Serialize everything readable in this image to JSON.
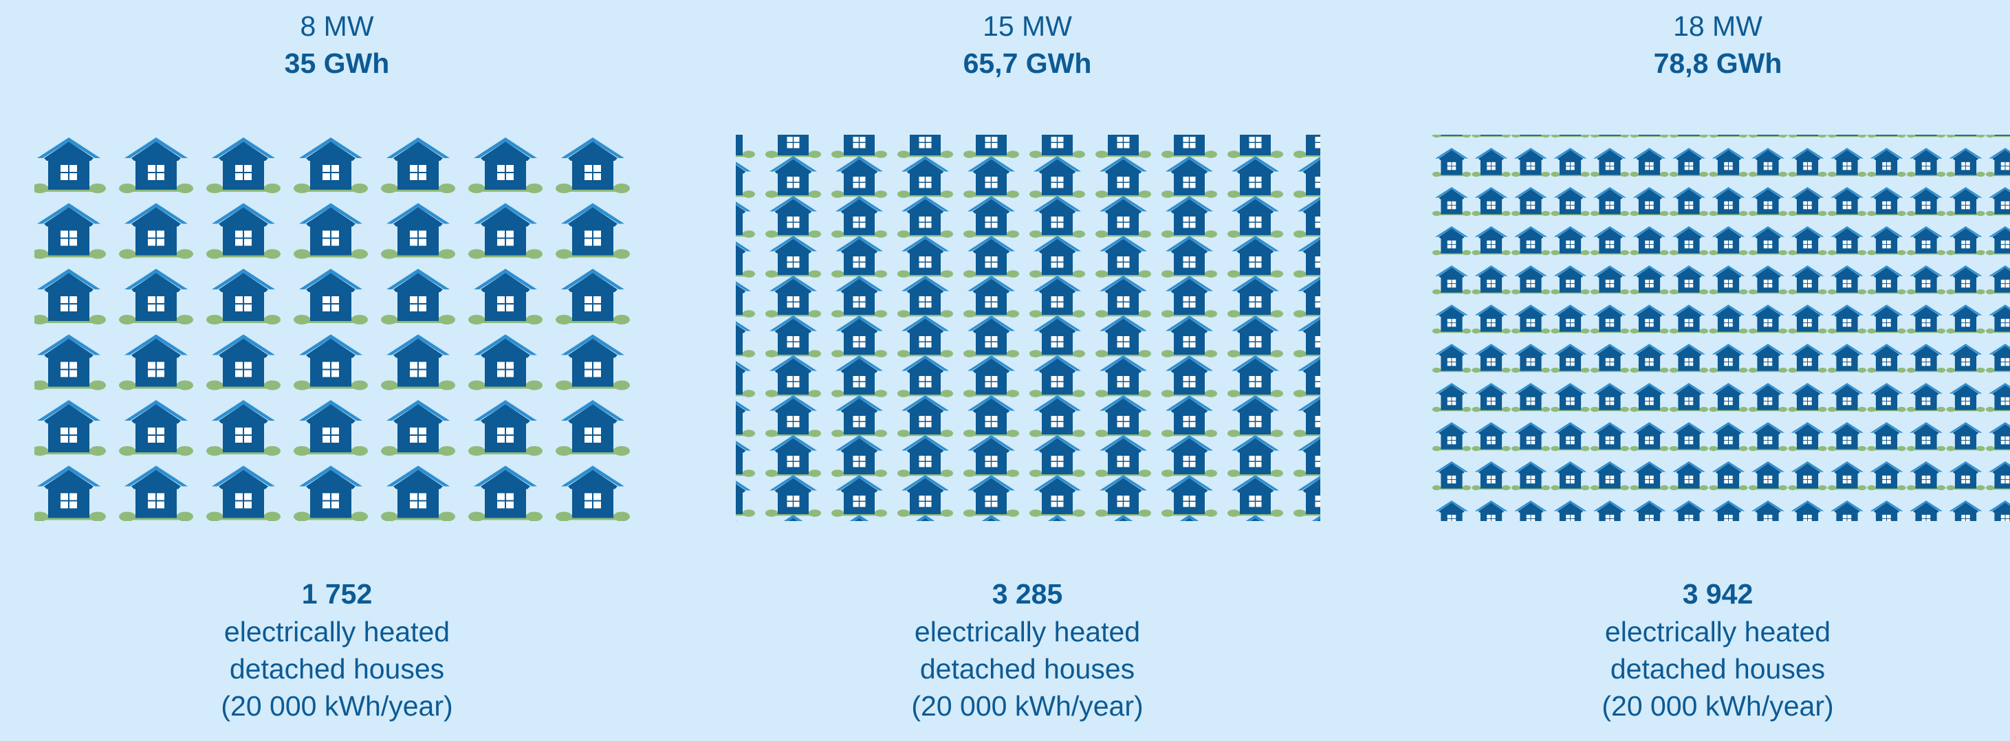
{
  "colors": {
    "background": "#d3ebfa",
    "text": "#0d5a94",
    "house": "#0d5a94",
    "roof_highlight": "#2e8fd1",
    "window": "#ffffff",
    "bush": "#8fba7a"
  },
  "icon": "house-icon",
  "panels": [
    {
      "power": "8 MW",
      "energy": "35 GWh",
      "houses": "1 752",
      "line1": "electrically heated",
      "line2": "detached houses",
      "line3": "(20 000 kWh/year)"
    },
    {
      "power": "15 MW",
      "energy": "65,7 GWh",
      "houses": "3 285",
      "line1": "electrically heated",
      "line2": "detached houses",
      "line3": "(20 000 kWh/year)"
    },
    {
      "power": "18 MW",
      "energy": "78,8 GWh",
      "houses": "3 942",
      "line1": "electrically heated",
      "line2": "detached houses",
      "line3": "(20 000 kWh/year)"
    }
  ]
}
